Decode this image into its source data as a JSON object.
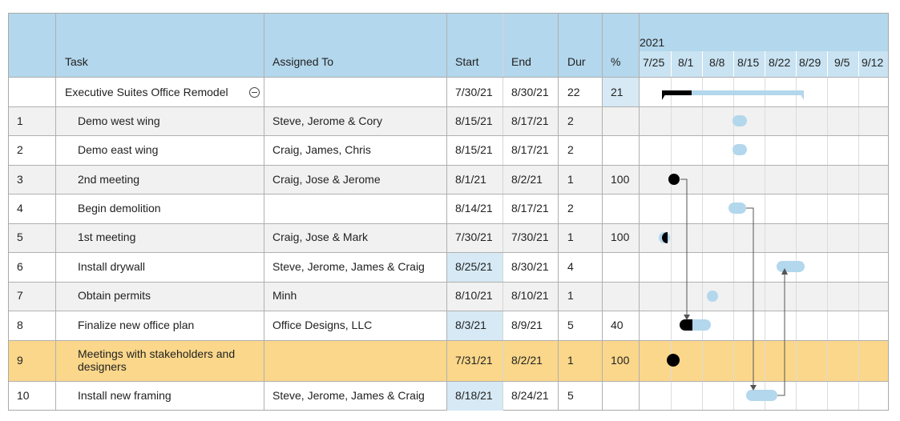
{
  "header": {
    "task": "Task",
    "assigned": "Assigned To",
    "start": "Start",
    "end": "End",
    "dur": "Dur",
    "pct": "%",
    "year": "2021",
    "weeks": [
      "7/25",
      "8/1",
      "8/8",
      "8/15",
      "8/22",
      "8/29",
      "9/5",
      "9/12"
    ]
  },
  "summary": {
    "task": "Executive Suites Office Remodel",
    "start": "7/30/21",
    "end": "8/30/21",
    "dur": "22",
    "pct": "21"
  },
  "rows": [
    {
      "num": "1",
      "task": "Demo west wing",
      "assigned": "Steve, Jerome & Cory",
      "start": "8/15/21",
      "end": "8/17/21",
      "dur": "2",
      "pct": ""
    },
    {
      "num": "2",
      "task": "Demo east wing",
      "assigned": "Craig, James, Chris",
      "start": "8/15/21",
      "end": "8/17/21",
      "dur": "2",
      "pct": ""
    },
    {
      "num": "3",
      "task": "2nd meeting",
      "assigned": "Craig, Jose & Jerome",
      "start": "8/1/21",
      "end": "8/2/21",
      "dur": "1",
      "pct": "100"
    },
    {
      "num": "4",
      "task": "Begin demolition",
      "assigned": "",
      "start": "8/14/21",
      "end": "8/17/21",
      "dur": "2",
      "pct": ""
    },
    {
      "num": "5",
      "task": "1st meeting",
      "assigned": "Craig, Jose & Mark",
      "start": "7/30/21",
      "end": "7/30/21",
      "dur": "1",
      "pct": "100"
    },
    {
      "num": "6",
      "task": "Install drywall",
      "assigned": "Steve, Jerome, James & Craig",
      "start": "8/25/21",
      "end": "8/30/21",
      "dur": "4",
      "pct": ""
    },
    {
      "num": "7",
      "task": "Obtain permits",
      "assigned": "Minh",
      "start": "8/10/21",
      "end": "8/10/21",
      "dur": "1",
      "pct": ""
    },
    {
      "num": "8",
      "task": "Finalize new office plan",
      "assigned": "Office Designs, LLC",
      "start": "8/3/21",
      "end": "8/9/21",
      "dur": "5",
      "pct": "40"
    },
    {
      "num": "9",
      "task": "Meetings with stakeholders and",
      "task2": "designers",
      "assigned": "",
      "start": "7/31/21",
      "end": "8/2/21",
      "dur": "1",
      "pct": "100"
    },
    {
      "num": "10",
      "task": "Install new framing",
      "assigned": "Steve, Jerome, James & Craig",
      "start": "8/18/21",
      "end": "8/24/21",
      "dur": "5",
      "pct": ""
    }
  ],
  "colors": {
    "header": "#b3d7ec",
    "stripe": "#f1f1f1",
    "highlight": "#fad78a",
    "bar": "#b3d7ec",
    "progress": "#000000"
  }
}
